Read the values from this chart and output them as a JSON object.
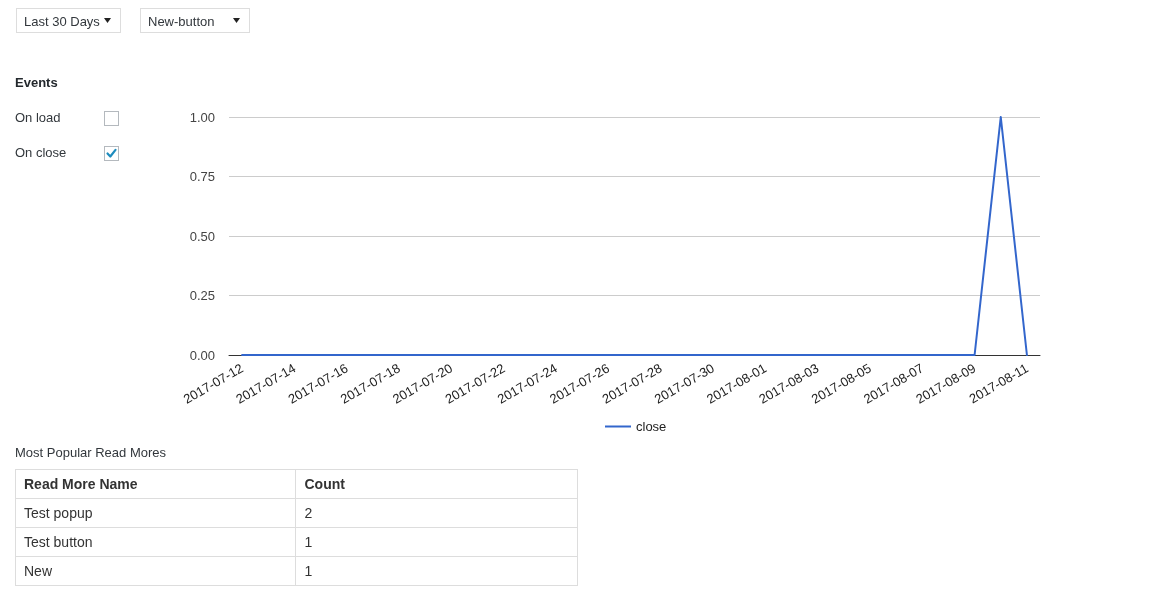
{
  "chart_data": [
    {
      "type": "other",
      "title": "Events",
      "annotations": [
        "Last 30 Days",
        "New-button",
        "On load",
        "On close"
      ]
    },
    {
      "type": "line",
      "categories": [
        "2017-07-12",
        null,
        "2017-07-14",
        null,
        "2017-07-16",
        null,
        "2017-07-18",
        null,
        "2017-07-20",
        null,
        "2017-07-22",
        null,
        "2017-07-24",
        null,
        "2017-07-26",
        null,
        "2017-07-28",
        null,
        "2017-07-30",
        null,
        "2017-08-01",
        null,
        "2017-08-03",
        null,
        "2017-08-05",
        null,
        "2017-08-07",
        null,
        "2017-08-09",
        null,
        "2017-08-11"
      ],
      "series": [
        {
          "name": "close",
          "color": "#3366cc",
          "values": [
            0,
            0,
            0,
            0,
            0,
            0,
            0,
            0,
            0,
            0,
            0,
            0,
            0,
            0,
            0,
            0,
            0,
            0,
            0,
            0,
            0,
            0,
            0,
            0,
            0,
            0,
            0,
            0,
            0,
            1,
            0
          ]
        }
      ],
      "ylim": [
        0,
        1
      ],
      "yticks": [
        {
          "value": 0,
          "label": "0.00"
        },
        {
          "value": 0.25,
          "label": "0.25"
        },
        {
          "value": 0.5,
          "label": "0.50"
        },
        {
          "value": 0.75,
          "label": "0.75"
        },
        {
          "value": 1,
          "label": "1.00"
        }
      ],
      "grid": "y",
      "legend": "bottom"
    },
    {
      "type": "other",
      "title": "Most Popular Read Mores",
      "xlabel": "Read More Name",
      "ylabel": "Count",
      "categories": [
        "Test popup",
        "Test button",
        "New"
      ],
      "values": [
        2,
        1,
        1
      ],
      "data_labels": true
    }
  ]
}
